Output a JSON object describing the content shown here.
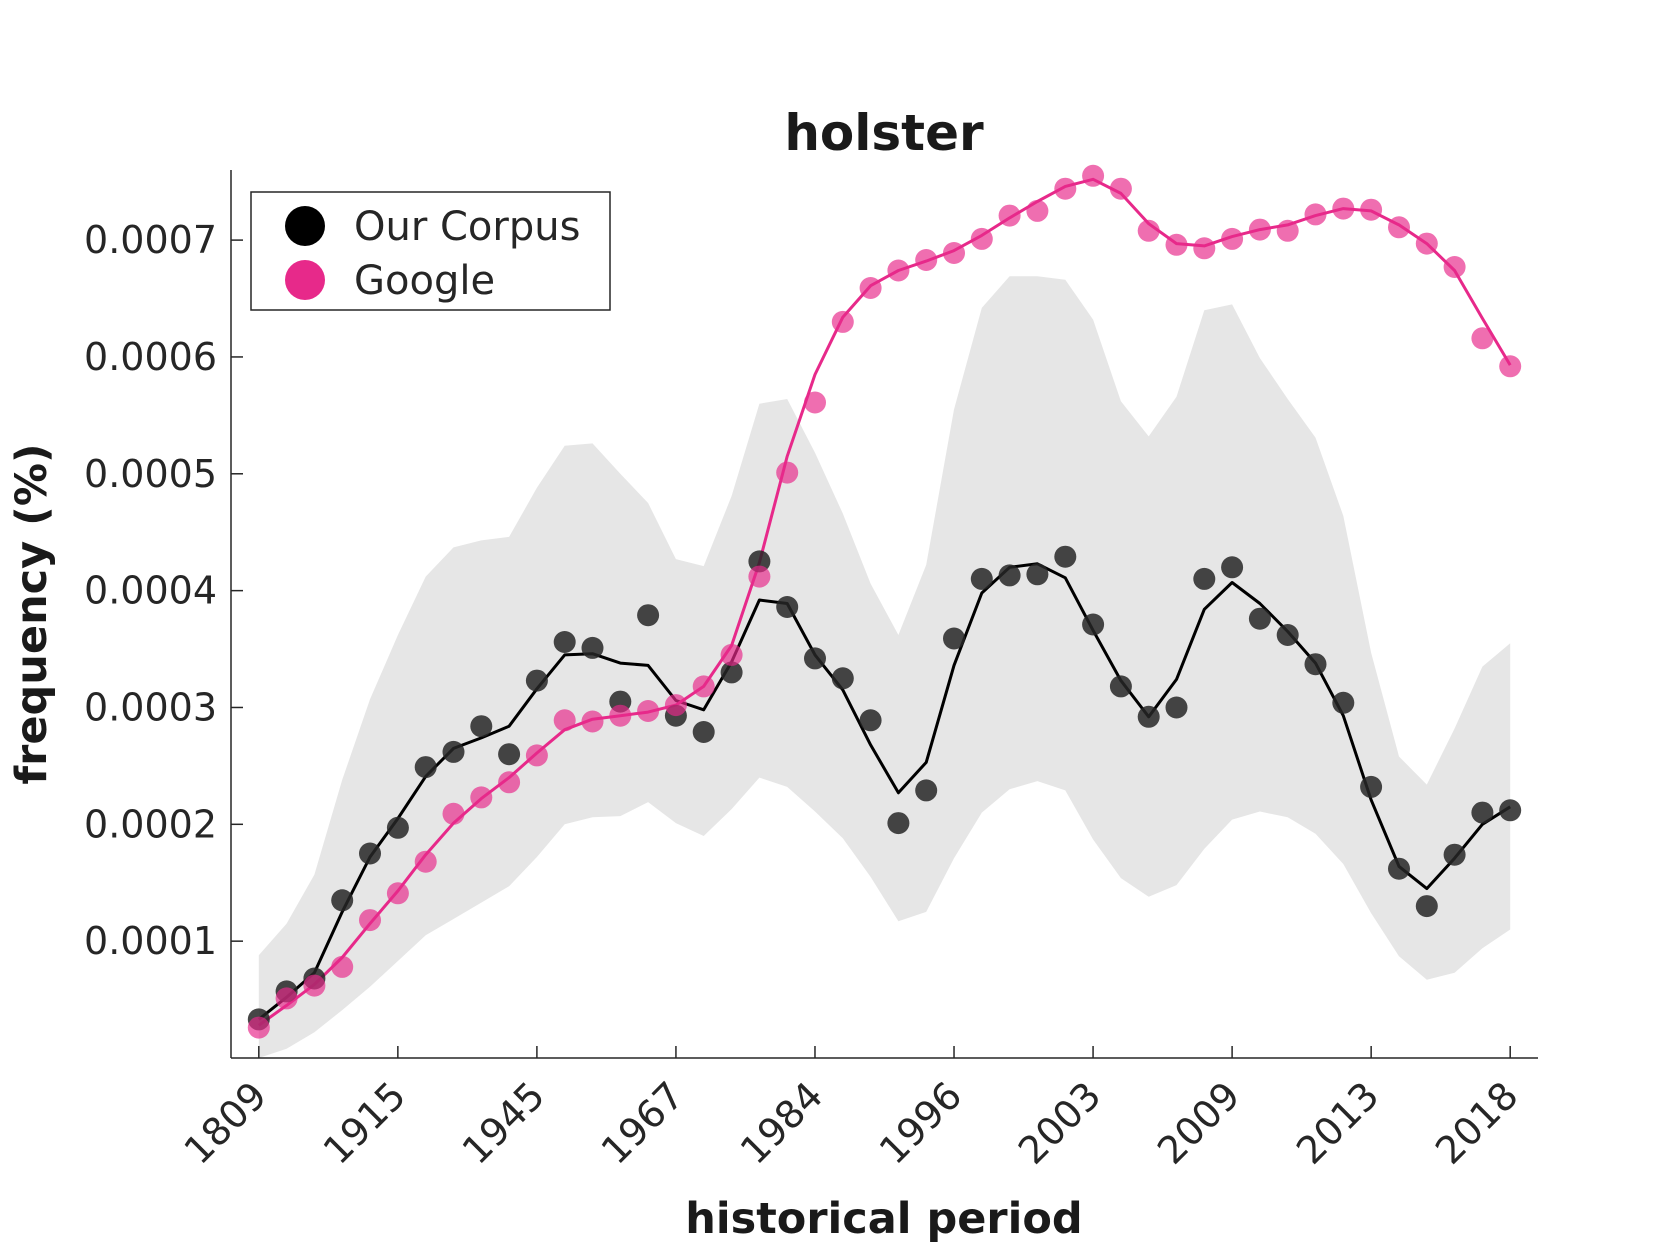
{
  "chart_data": {
    "type": "line",
    "title": "holster",
    "xlabel": "historical period",
    "ylabel": "frequency (%)",
    "ylim": [
      0,
      0.00076
    ],
    "y_ticks": [
      0.0001,
      0.0002,
      0.0003,
      0.0004,
      0.0005,
      0.0006,
      0.0007
    ],
    "y_tick_labels": [
      "0.0001",
      "0.0002",
      "0.0003",
      "0.0004",
      "0.0005",
      "0.0006",
      "0.0007"
    ],
    "x_tick_labels": [
      "1809",
      "1915",
      "1945",
      "1967",
      "1984",
      "1996",
      "2003",
      "2009",
      "2013",
      "2018"
    ],
    "x_tick_positions": [
      1,
      6,
      11,
      16,
      21,
      26,
      31,
      36,
      41,
      46
    ],
    "x_range": [
      0,
      47
    ],
    "grid": false,
    "legend_position": "top-left",
    "colors": {
      "corpus": "#000000",
      "google": "#e7298a",
      "band": "#e6e6e6"
    },
    "series": [
      {
        "name": "Our Corpus",
        "points": [
          3.3e-05,
          5.7e-05,
          6.8e-05,
          0.000135,
          0.000175,
          0.000197,
          0.000249,
          0.000262,
          0.000284,
          0.00026,
          0.000323,
          0.000356,
          0.000351,
          0.000305,
          0.000379,
          0.000293,
          0.000279,
          0.00033,
          0.000425,
          0.000386,
          0.000342,
          0.000325,
          0.000289,
          0.000201,
          0.000229,
          0.000359,
          0.00041,
          0.000413,
          0.000414,
          0.000429,
          0.000371,
          0.000318,
          0.000292,
          0.0003,
          0.00041,
          0.00042,
          0.000376,
          0.000362,
          0.000337,
          0.000304,
          0.000232,
          0.000162,
          0.00013,
          0.000174,
          0.00021,
          0.000212
        ],
        "trend": [
          3.3e-05,
          5.2e-05,
          7.3e-05,
          0.000125,
          0.000172,
          0.000205,
          0.000241,
          0.000265,
          0.000274,
          0.000284,
          0.000316,
          0.000345,
          0.000346,
          0.000338,
          0.000336,
          0.000306,
          0.000298,
          0.000339,
          0.000392,
          0.000389,
          0.000345,
          0.000315,
          0.000268,
          0.000227,
          0.000253,
          0.000336,
          0.000398,
          0.00042,
          0.000423,
          0.000411,
          0.000366,
          0.000323,
          0.000292,
          0.000324,
          0.000384,
          0.000407,
          0.000389,
          0.000365,
          0.000338,
          0.000293,
          0.000221,
          0.000164,
          0.000145,
          0.000171,
          0.0002,
          0.000215
        ],
        "band_upper": [
          8.8e-05,
          0.000115,
          0.000157,
          0.000238,
          0.000307,
          0.000362,
          0.000412,
          0.000437,
          0.000443,
          0.000446,
          0.000488,
          0.000524,
          0.000526,
          0.0005,
          0.000475,
          0.000427,
          0.000421,
          0.000481,
          0.00056,
          0.000564,
          0.000518,
          0.000466,
          0.000406,
          0.000362,
          0.000422,
          0.000555,
          0.000642,
          0.000669,
          0.000669,
          0.000666,
          0.000632,
          0.000562,
          0.000532,
          0.000566,
          0.00064,
          0.000645,
          0.000599,
          0.000564,
          0.000531,
          0.000464,
          0.000347,
          0.000258,
          0.000234,
          0.000282,
          0.000335,
          0.000355
        ],
        "band_lower": [
          0.0,
          8e-06,
          2.2e-05,
          4.1e-05,
          6.1e-05,
          8.3e-05,
          0.000105,
          0.000119,
          0.000133,
          0.000147,
          0.000172,
          0.0002,
          0.000206,
          0.000207,
          0.000219,
          0.000201,
          0.00019,
          0.000213,
          0.00024,
          0.000232,
          0.000211,
          0.000188,
          0.000155,
          0.000117,
          0.000125,
          0.000171,
          0.00021,
          0.00023,
          0.000237,
          0.000229,
          0.000187,
          0.000154,
          0.000138,
          0.000148,
          0.000179,
          0.000204,
          0.000211,
          0.000206,
          0.000192,
          0.000166,
          0.000124,
          8.7e-05,
          6.7e-05,
          7.3e-05,
          9.4e-05,
          0.00011
        ]
      },
      {
        "name": "Google",
        "points": [
          2.6e-05,
          5.1e-05,
          6.2e-05,
          7.8e-05,
          0.000118,
          0.000141,
          0.000168,
          0.000209,
          0.000223,
          0.000236,
          0.000259,
          0.000289,
          0.000288,
          0.000293,
          0.000297,
          0.000302,
          0.000318,
          0.000345,
          0.000412,
          0.000501,
          0.000561,
          0.00063,
          0.000659,
          0.000674,
          0.000683,
          0.000689,
          0.000701,
          0.000721,
          0.000725,
          0.000744,
          0.000755,
          0.000744,
          0.000708,
          0.000696,
          0.000693,
          0.000701,
          0.000709,
          0.000708,
          0.000722,
          0.000727,
          0.000726,
          0.000711,
          0.000697,
          0.000677,
          0.000616,
          0.000592
        ],
        "trend": [
          2.8e-05,
          4.5e-05,
          6.3e-05,
          8.6e-05,
          0.000115,
          0.000143,
          0.000174,
          0.000201,
          0.000222,
          0.00024,
          0.000261,
          0.000281,
          0.00029,
          0.000293,
          0.000296,
          0.000302,
          0.000318,
          0.000353,
          0.000424,
          0.000515,
          0.000585,
          0.000634,
          0.000661,
          0.000674,
          0.000682,
          0.000691,
          0.000704,
          0.000719,
          0.000733,
          0.000746,
          0.000752,
          0.00074,
          0.000714,
          0.000697,
          0.000695,
          0.000703,
          0.000709,
          0.000713,
          0.000721,
          0.000727,
          0.000725,
          0.000713,
          0.000697,
          0.000674,
          0.000633,
          0.000593
        ]
      }
    ]
  }
}
